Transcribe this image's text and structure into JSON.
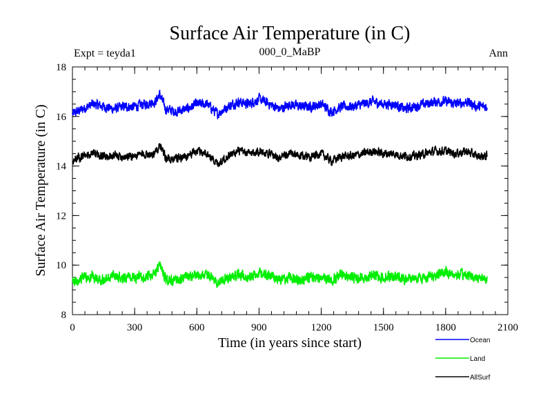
{
  "chart_data": {
    "type": "line",
    "title": "Surface Air Temperature (in C)",
    "subtitle_left": "Expt = teyda1",
    "subtitle_center": "000_0_MaBP",
    "subtitle_right": "Ann",
    "xlabel": "Time (in years since start)",
    "ylabel": "Surface Air Temperature (in C)",
    "xlim": [
      0,
      2100
    ],
    "ylim": [
      8,
      18
    ],
    "x_ticks": [
      0,
      300,
      600,
      900,
      1200,
      1500,
      1800,
      2100
    ],
    "y_ticks": [
      8,
      10,
      12,
      14,
      16,
      18
    ],
    "series": [
      {
        "name": "Ocean",
        "color": "#0000ff",
        "x": [
          0,
          50,
          100,
          150,
          200,
          250,
          300,
          350,
          400,
          420,
          450,
          500,
          550,
          600,
          650,
          700,
          750,
          800,
          850,
          900,
          950,
          1000,
          1050,
          1100,
          1150,
          1200,
          1250,
          1300,
          1350,
          1400,
          1450,
          1500,
          1550,
          1600,
          1650,
          1700,
          1750,
          1800,
          1850,
          1900,
          1950,
          2000
        ],
        "values": [
          16.1,
          16.3,
          16.5,
          16.4,
          16.3,
          16.4,
          16.4,
          16.5,
          16.6,
          16.9,
          16.3,
          16.2,
          16.3,
          16.5,
          16.5,
          16.1,
          16.4,
          16.6,
          16.5,
          16.7,
          16.5,
          16.3,
          16.5,
          16.4,
          16.4,
          16.5,
          16.2,
          16.4,
          16.4,
          16.5,
          16.6,
          16.5,
          16.5,
          16.3,
          16.4,
          16.5,
          16.6,
          16.6,
          16.5,
          16.6,
          16.4,
          16.4
        ]
      },
      {
        "name": "Land",
        "color": "#00ee00",
        "x": [
          0,
          50,
          100,
          150,
          200,
          250,
          300,
          350,
          400,
          420,
          450,
          500,
          550,
          600,
          650,
          700,
          750,
          800,
          850,
          900,
          950,
          1000,
          1050,
          1100,
          1150,
          1200,
          1250,
          1300,
          1350,
          1400,
          1450,
          1500,
          1550,
          1600,
          1650,
          1700,
          1750,
          1800,
          1850,
          1900,
          1950,
          2000
        ],
        "values": [
          9.3,
          9.5,
          9.5,
          9.4,
          9.6,
          9.5,
          9.5,
          9.5,
          9.6,
          10.1,
          9.4,
          9.4,
          9.5,
          9.6,
          9.6,
          9.3,
          9.5,
          9.6,
          9.5,
          9.7,
          9.6,
          9.4,
          9.5,
          9.4,
          9.5,
          9.5,
          9.4,
          9.6,
          9.5,
          9.5,
          9.6,
          9.5,
          9.6,
          9.4,
          9.5,
          9.5,
          9.6,
          9.7,
          9.6,
          9.6,
          9.5,
          9.5
        ]
      },
      {
        "name": "AllSurf",
        "color": "#000000",
        "x": [
          0,
          50,
          100,
          150,
          200,
          250,
          300,
          350,
          400,
          420,
          450,
          500,
          550,
          600,
          650,
          700,
          750,
          800,
          850,
          900,
          950,
          1000,
          1050,
          1100,
          1150,
          1200,
          1250,
          1300,
          1350,
          1400,
          1450,
          1500,
          1550,
          1600,
          1650,
          1700,
          1750,
          1800,
          1850,
          1900,
          1950,
          2000
        ],
        "values": [
          14.2,
          14.4,
          14.5,
          14.4,
          14.4,
          14.4,
          14.4,
          14.5,
          14.5,
          14.9,
          14.3,
          14.3,
          14.4,
          14.6,
          14.5,
          14.1,
          14.4,
          14.6,
          14.5,
          14.6,
          14.5,
          14.3,
          14.5,
          14.4,
          14.4,
          14.5,
          14.2,
          14.4,
          14.4,
          14.5,
          14.6,
          14.5,
          14.5,
          14.4,
          14.4,
          14.5,
          14.6,
          14.6,
          14.5,
          14.6,
          14.4,
          14.4
        ]
      }
    ],
    "legend": [
      "Ocean",
      "Land",
      "AllSurf"
    ],
    "legend_position": "bottom-right"
  }
}
